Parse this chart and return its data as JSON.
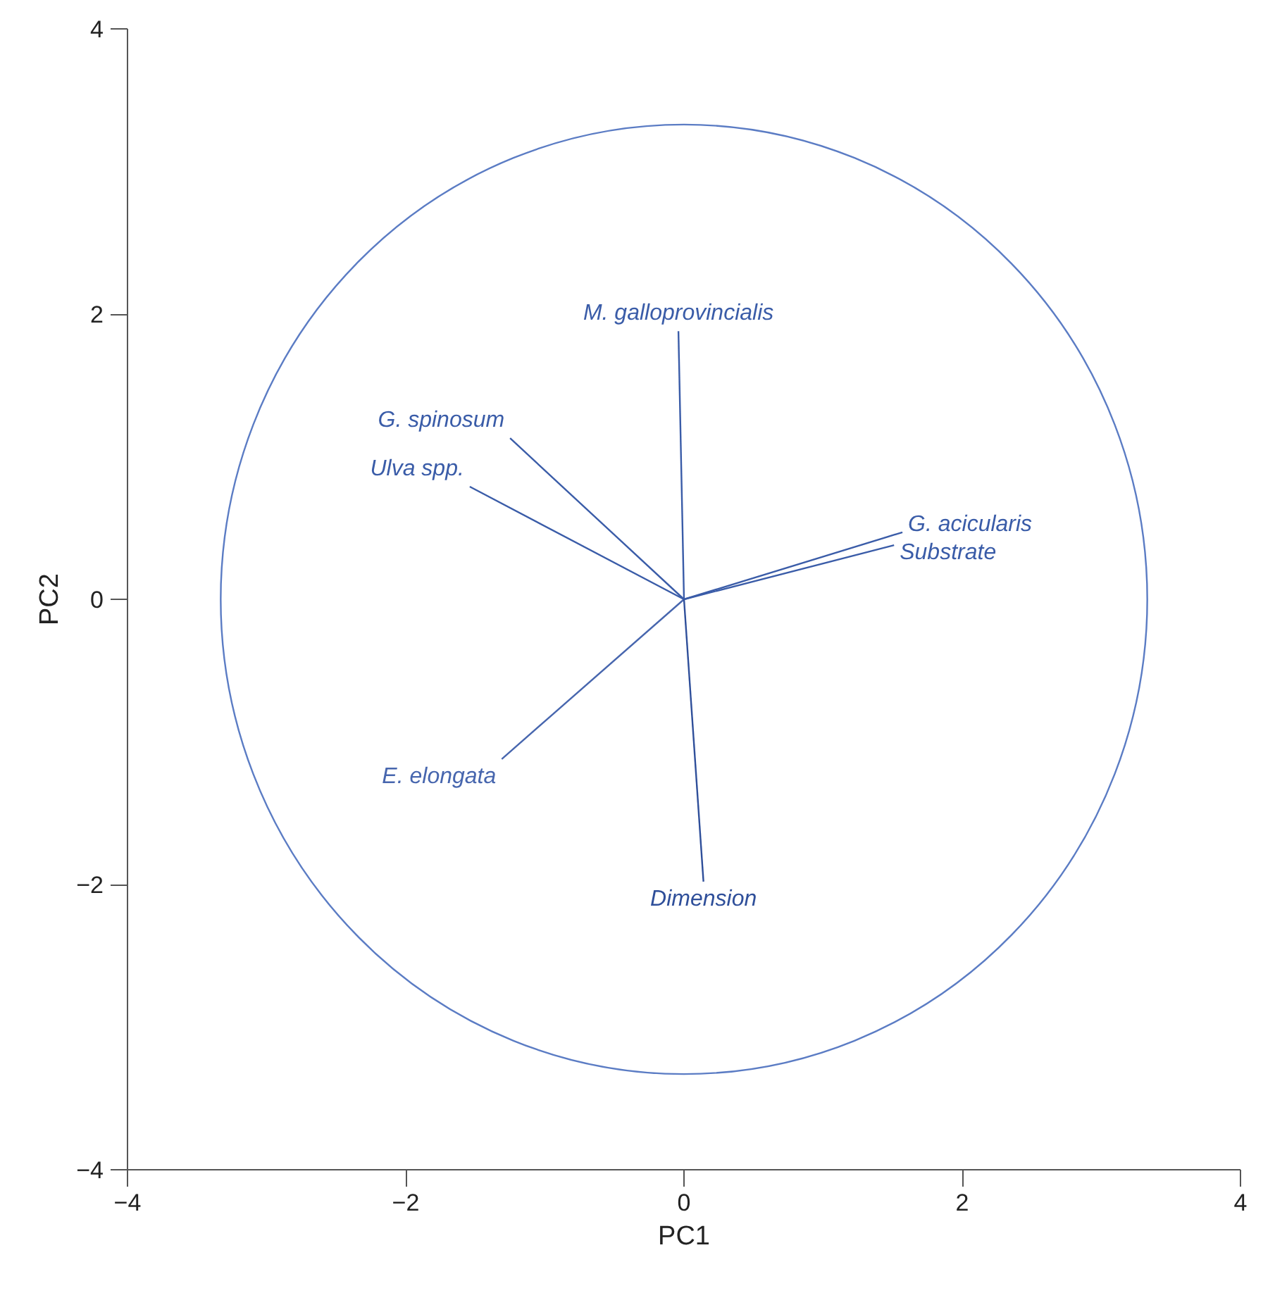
{
  "chart_data": {
    "type": "line",
    "xlabel": "PC1",
    "ylabel": "PC2",
    "xlim": [
      -4,
      4
    ],
    "ylim": [
      -4,
      4
    ],
    "xticks": [
      -4,
      -2,
      0,
      2,
      4
    ],
    "yticks": [
      -4,
      -2,
      0,
      2,
      4
    ],
    "grid": false,
    "legend": false,
    "marker": "none",
    "line_style": "solid",
    "series": [
      {
        "name": "M. galloprovincialis",
        "color": "#3a5ca8",
        "x": [
          0,
          -0.04
        ],
        "values": [
          0,
          1.88
        ]
      },
      {
        "name": "G. spinosum",
        "color": "#3a5ca8",
        "x": [
          0,
          -1.25
        ],
        "values": [
          0,
          1.13
        ]
      },
      {
        "name": "Ulva spp.",
        "color": "#3a5ca8",
        "x": [
          0,
          -1.54
        ],
        "values": [
          0,
          0.79
        ]
      },
      {
        "name": "G. acicularis",
        "color": "#3a5ca8",
        "x": [
          0,
          1.57
        ],
        "values": [
          0,
          0.47
        ]
      },
      {
        "name": "Substrate",
        "color": "#3a5ca8",
        "x": [
          0,
          1.51
        ],
        "values": [
          0,
          0.38
        ]
      },
      {
        "name": "E. elongata",
        "color": "#4766ae",
        "x": [
          0,
          -1.31
        ],
        "values": [
          0,
          -1.12
        ]
      },
      {
        "name": "Dimension",
        "color": "#2f4f9a",
        "x": [
          0,
          0.14
        ],
        "values": [
          0,
          -1.98
        ]
      }
    ]
  }
}
